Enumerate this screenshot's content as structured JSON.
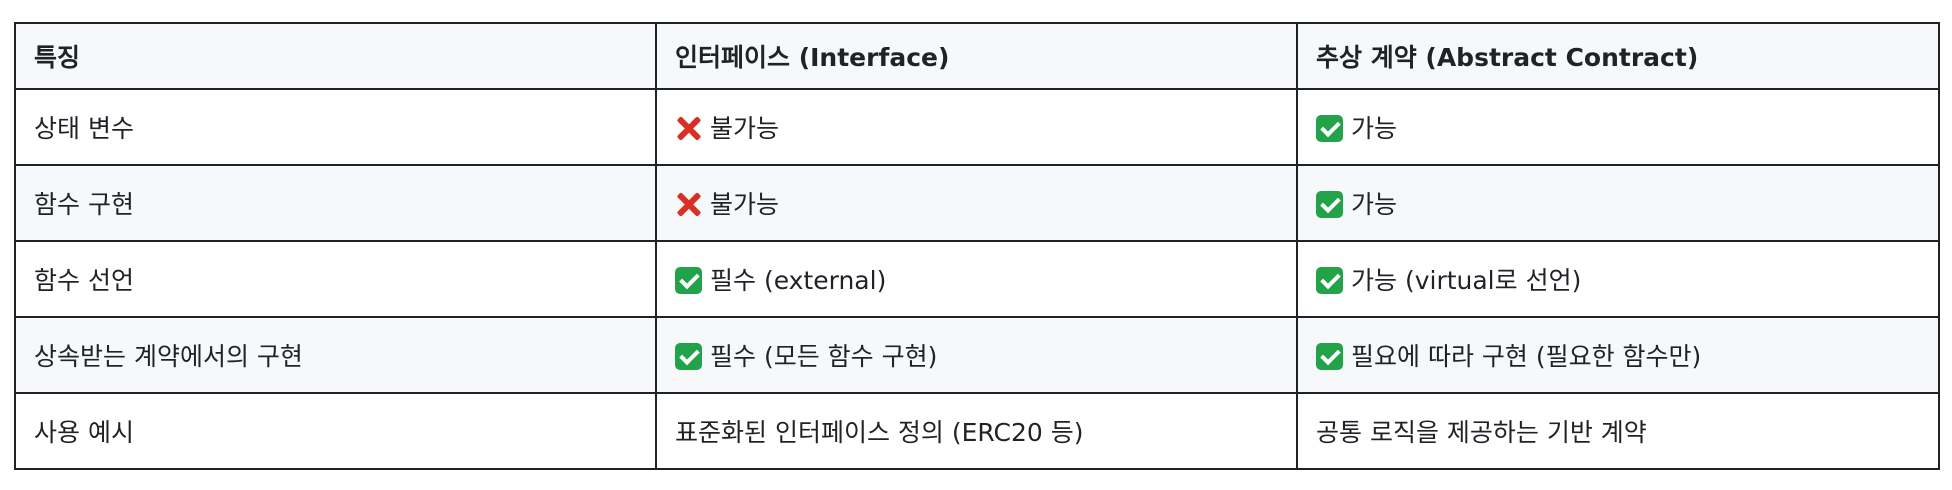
{
  "table": {
    "headers": [
      "특징",
      "인터페이스 (Interface)",
      "추상 계약 (Abstract Contract)"
    ],
    "rows": [
      {
        "feature": "상태 변수",
        "interface": {
          "icon": "cross-mark-icon",
          "text": "불가능"
        },
        "abstract": {
          "icon": "check-mark-icon",
          "text": "가능"
        }
      },
      {
        "feature": "함수 구현",
        "interface": {
          "icon": "cross-mark-icon",
          "text": "불가능"
        },
        "abstract": {
          "icon": "check-mark-icon",
          "text": "가능"
        }
      },
      {
        "feature": "함수 선언",
        "interface": {
          "icon": "check-mark-icon",
          "text": "필수 (external)"
        },
        "abstract": {
          "icon": "check-mark-icon",
          "text": "가능 (virtual로 선언)"
        }
      },
      {
        "feature": "상속받는 계약에서의 구현",
        "interface": {
          "icon": "check-mark-icon",
          "text": "필수 (모든 함수 구현)"
        },
        "abstract": {
          "icon": "check-mark-icon",
          "text": "필요에 따라 구현 (필요한 함수만)"
        }
      },
      {
        "feature": "사용 예시",
        "interface": {
          "icon": "",
          "text": "표준화된 인터페이스 정의 (ERC20 등)"
        },
        "abstract": {
          "icon": "",
          "text": "공통 로직을 제공하는 기반 계약"
        }
      }
    ]
  },
  "colors": {
    "check": "#22a34a",
    "cross": "#d93025",
    "header_bg": "#f6f8fa",
    "border": "#1f2328"
  }
}
